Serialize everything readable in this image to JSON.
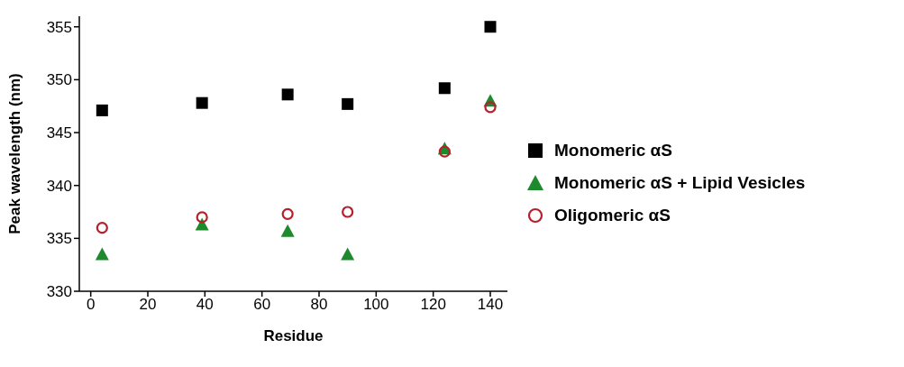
{
  "chart_data": {
    "type": "scatter",
    "xlabel": "Residue",
    "ylabel": "Peak wavelength (nm)",
    "x": [
      4,
      39,
      69,
      90,
      124,
      140
    ],
    "xlim": [
      -4,
      146
    ],
    "xticks": [
      0,
      20,
      40,
      60,
      80,
      100,
      120,
      140
    ],
    "ylim": [
      330,
      356
    ],
    "yticks": [
      330,
      335,
      340,
      345,
      350,
      355
    ],
    "grid": false,
    "legend": "right",
    "series": [
      {
        "name": "Monomeric αS",
        "color": "#000000",
        "marker": "square",
        "values": [
          347.1,
          347.8,
          348.6,
          347.7,
          349.2,
          355.0
        ]
      },
      {
        "name": "Monomeric αS + Lipid Vesicles",
        "color": "#1e8a2e",
        "marker": "triangle",
        "values": [
          333.5,
          336.3,
          335.7,
          333.5,
          343.5,
          348.0
        ]
      },
      {
        "name": "Oligomeric αS",
        "color": "#b5202a",
        "marker": "circle",
        "values": [
          336.0,
          337.0,
          337.3,
          337.5,
          343.2,
          347.4
        ]
      }
    ]
  }
}
